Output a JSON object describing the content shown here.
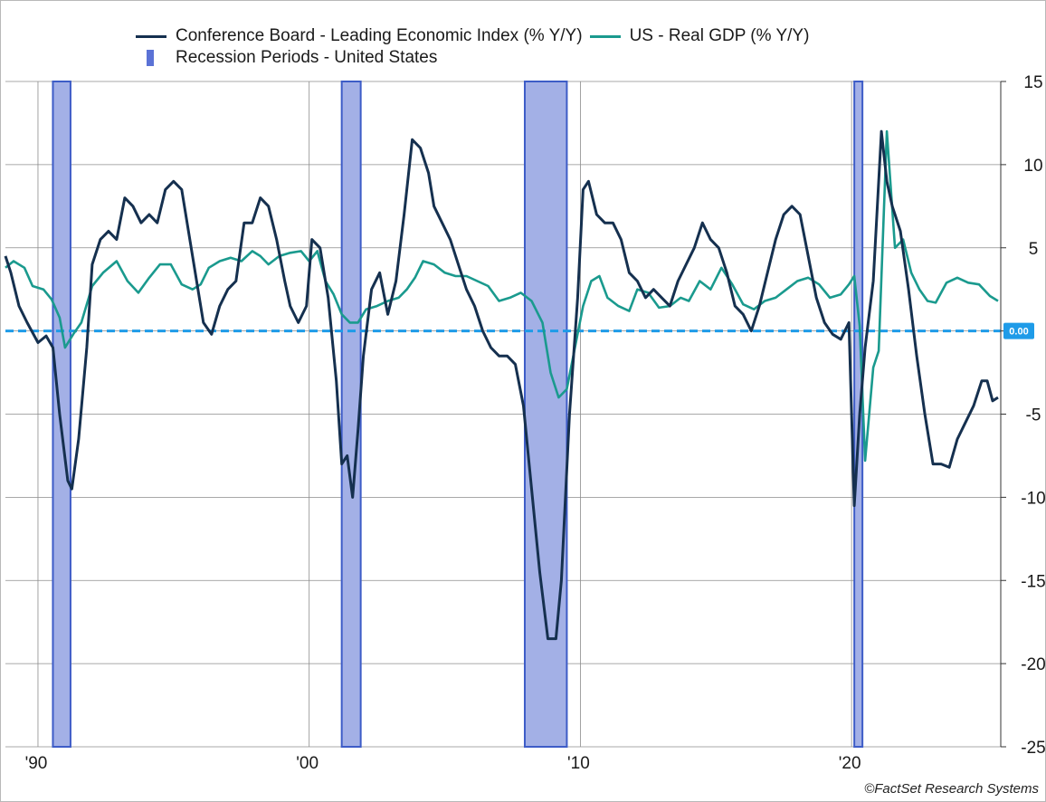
{
  "chart_data": {
    "type": "line",
    "title": "",
    "xlabel": "",
    "ylabel": "",
    "ylim": [
      -25,
      15
    ],
    "xlim": [
      1988.8,
      2025.5
    ],
    "y_ticks": [
      15,
      10,
      5,
      0,
      -5,
      -10,
      -15,
      -20,
      -25
    ],
    "y_tick_labels": [
      "15",
      "10",
      "5",
      "",
      "-5",
      "-10",
      "-15",
      "-20",
      "-25"
    ],
    "x_ticks": [
      1990,
      2000,
      2010,
      2020
    ],
    "x_tick_labels": [
      "'90",
      "'00",
      "'10",
      "'20"
    ],
    "grid": true,
    "legend_position": "top-center",
    "reference_line": {
      "value": 0.0,
      "label": "0.00",
      "color": "#1e9be8"
    },
    "recessions": {
      "name": "Recession Periods - United States",
      "color": "#a3b0e6",
      "edge_color": "#3d5cc7",
      "periods": [
        [
          1990.55,
          1991.2
        ],
        [
          2001.2,
          2001.9
        ],
        [
          2007.95,
          2009.5
        ],
        [
          2020.1,
          2020.4
        ]
      ]
    },
    "series": [
      {
        "name": "Conference Board - Leading Economic Index (% Y/Y)",
        "color": "#15304f",
        "x": [
          1988.8,
          1989.0,
          1989.3,
          1989.6,
          1990.0,
          1990.3,
          1990.55,
          1990.8,
          1991.1,
          1991.25,
          1991.5,
          1991.8,
          1992.0,
          1992.3,
          1992.6,
          1992.9,
          1993.2,
          1993.5,
          1993.8,
          1994.1,
          1994.4,
          1994.7,
          1995.0,
          1995.3,
          1995.6,
          1995.9,
          1996.1,
          1996.4,
          1996.7,
          1997.0,
          1997.3,
          1997.6,
          1997.9,
          1998.2,
          1998.5,
          1998.8,
          1999.1,
          1999.3,
          1999.6,
          1999.9,
          2000.1,
          2000.4,
          2000.7,
          2001.0,
          2001.2,
          2001.4,
          2001.6,
          2001.8,
          2002.0,
          2002.3,
          2002.6,
          2002.9,
          2003.2,
          2003.5,
          2003.8,
          2004.1,
          2004.4,
          2004.6,
          2004.9,
          2005.2,
          2005.5,
          2005.8,
          2006.1,
          2006.4,
          2006.7,
          2007.0,
          2007.3,
          2007.6,
          2007.9,
          2008.2,
          2008.5,
          2008.8,
          2009.1,
          2009.3,
          2009.6,
          2009.9,
          2010.1,
          2010.3,
          2010.6,
          2010.9,
          2011.2,
          2011.5,
          2011.8,
          2012.1,
          2012.4,
          2012.7,
          2013.0,
          2013.3,
          2013.6,
          2013.9,
          2014.2,
          2014.5,
          2014.8,
          2015.1,
          2015.4,
          2015.7,
          2016.0,
          2016.3,
          2016.6,
          2016.9,
          2017.2,
          2017.5,
          2017.8,
          2018.1,
          2018.4,
          2018.7,
          2019.0,
          2019.3,
          2019.6,
          2019.9,
          2020.1,
          2020.3,
          2020.5,
          2020.8,
          2021.1,
          2021.3,
          2021.5,
          2021.8,
          2022.1,
          2022.4,
          2022.7,
          2023.0,
          2023.3,
          2023.6,
          2023.9,
          2024.2,
          2024.5,
          2024.8,
          2025.0,
          2025.2,
          2025.4
        ],
        "values": [
          4.5,
          3.5,
          1.5,
          0.5,
          -0.7,
          -0.3,
          -1.0,
          -5.0,
          -9.0,
          -9.5,
          -6.5,
          -1.0,
          4.0,
          5.5,
          6.0,
          5.5,
          8.0,
          7.5,
          6.5,
          7.0,
          6.5,
          8.5,
          9.0,
          8.5,
          5.5,
          2.5,
          0.5,
          -0.2,
          1.5,
          2.5,
          3.0,
          6.5,
          6.5,
          8.0,
          7.5,
          5.5,
          3.0,
          1.5,
          0.5,
          1.5,
          5.5,
          5.0,
          2.0,
          -3.0,
          -8.0,
          -7.5,
          -10.0,
          -6.0,
          -1.5,
          2.5,
          3.5,
          1.0,
          3.0,
          7.0,
          11.5,
          11.0,
          9.5,
          7.5,
          6.5,
          5.5,
          4.0,
          2.5,
          1.5,
          0.0,
          -1.0,
          -1.5,
          -1.5,
          -2.0,
          -4.5,
          -9.5,
          -14.5,
          -18.5,
          -18.5,
          -15.0,
          -5.0,
          2.0,
          8.5,
          9.0,
          7.0,
          6.5,
          6.5,
          5.5,
          3.5,
          3.0,
          2.0,
          2.5,
          2.0,
          1.5,
          3.0,
          4.0,
          5.0,
          6.5,
          5.5,
          5.0,
          3.5,
          1.5,
          1.0,
          0.0,
          1.5,
          3.5,
          5.5,
          7.0,
          7.5,
          7.0,
          4.5,
          2.0,
          0.5,
          -0.2,
          -0.5,
          0.5,
          -10.5,
          -5.0,
          -1.0,
          3.0,
          12.0,
          9.0,
          7.5,
          6.0,
          2.5,
          -1.5,
          -5.0,
          -8.0,
          -8.0,
          -8.2,
          -6.5,
          -5.5,
          -4.5,
          -3.0,
          -3.0,
          -4.2,
          -4.0
        ]
      },
      {
        "name": "US - Real GDP (% Y/Y)",
        "color": "#1a9a8e",
        "x": [
          1988.8,
          1989.1,
          1989.5,
          1989.8,
          1990.2,
          1990.5,
          1990.8,
          1991.0,
          1991.3,
          1991.6,
          1992.0,
          1992.4,
          1992.9,
          1993.3,
          1993.7,
          1994.1,
          1994.5,
          1994.9,
          1995.3,
          1995.7,
          1996.0,
          1996.3,
          1996.7,
          1997.1,
          1997.5,
          1997.9,
          1998.2,
          1998.5,
          1998.9,
          1999.3,
          1999.7,
          2000.0,
          2000.3,
          2000.6,
          2000.9,
          2001.2,
          2001.5,
          2001.8,
          2002.1,
          2002.5,
          2002.9,
          2003.3,
          2003.6,
          2003.9,
          2004.2,
          2004.6,
          2005.0,
          2005.4,
          2005.8,
          2006.2,
          2006.6,
          2007.0,
          2007.4,
          2007.8,
          2008.2,
          2008.6,
          2008.9,
          2009.2,
          2009.5,
          2009.8,
          2010.1,
          2010.4,
          2010.7,
          2011.0,
          2011.4,
          2011.8,
          2012.1,
          2012.5,
          2012.9,
          2013.3,
          2013.7,
          2014.0,
          2014.4,
          2014.8,
          2015.2,
          2015.6,
          2016.0,
          2016.4,
          2016.8,
          2017.2,
          2017.6,
          2018.0,
          2018.4,
          2018.8,
          2019.2,
          2019.6,
          2019.9,
          2020.1,
          2020.3,
          2020.5,
          2020.8,
          2021.0,
          2021.3,
          2021.6,
          2021.9,
          2022.2,
          2022.5,
          2022.8,
          2023.1,
          2023.5,
          2023.9,
          2024.3,
          2024.7,
          2025.1,
          2025.4
        ],
        "values": [
          3.8,
          4.2,
          3.8,
          2.7,
          2.5,
          1.9,
          0.8,
          -1.0,
          -0.2,
          0.5,
          2.7,
          3.5,
          4.2,
          3.0,
          2.3,
          3.2,
          4.0,
          4.0,
          2.8,
          2.5,
          2.8,
          3.8,
          4.2,
          4.4,
          4.2,
          4.8,
          4.5,
          4.0,
          4.5,
          4.7,
          4.8,
          4.2,
          4.8,
          3.0,
          2.2,
          1.0,
          0.5,
          0.5,
          1.3,
          1.5,
          1.8,
          2.0,
          2.5,
          3.2,
          4.2,
          4.0,
          3.5,
          3.3,
          3.3,
          3.0,
          2.7,
          1.8,
          2.0,
          2.3,
          1.8,
          0.5,
          -2.5,
          -4.0,
          -3.5,
          -1.0,
          1.5,
          3.0,
          3.3,
          2.0,
          1.5,
          1.2,
          2.5,
          2.3,
          1.4,
          1.5,
          2.0,
          1.8,
          3.0,
          2.5,
          3.8,
          2.8,
          1.6,
          1.3,
          1.8,
          2.0,
          2.5,
          3.0,
          3.2,
          2.8,
          2.0,
          2.2,
          2.8,
          3.3,
          0.3,
          -7.8,
          -2.2,
          -1.2,
          12.0,
          5.0,
          5.5,
          3.5,
          2.5,
          1.8,
          1.7,
          2.9,
          3.2,
          2.9,
          2.8,
          2.1,
          1.8
        ]
      }
    ],
    "credit": "©FactSet Research Systems"
  }
}
